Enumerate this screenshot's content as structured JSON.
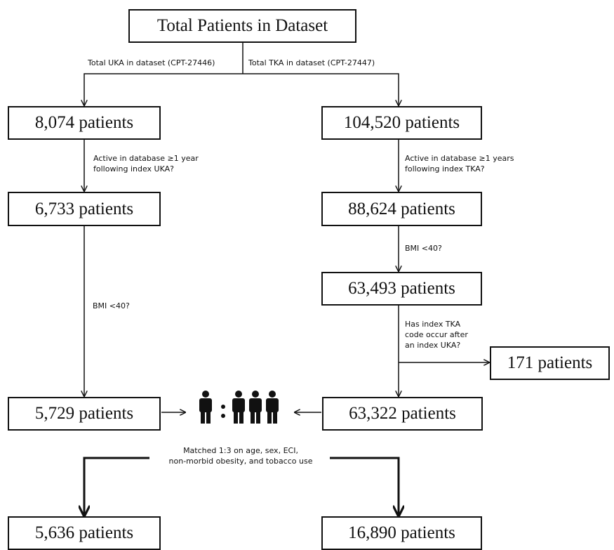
{
  "diagram": {
    "boxes": {
      "total": "Total Patients in Dataset",
      "uka_total": "8,074 patients",
      "tka_total": "104,520 patients",
      "uka_active": "6,733 patients",
      "tka_active": "88,624 patients",
      "tka_bmi": "63,493 patients",
      "tka_excluded": "171 patients",
      "uka_pre_match": "5,729 patients",
      "tka_pre_match": "63,322 patients",
      "uka_matched": "5,636 patients",
      "tka_matched": "16,890 patients"
    },
    "labels": {
      "uka_split": "Total UKA in dataset (CPT-27446)",
      "tka_split": "Total TKA in dataset (CPT-27447)",
      "uka_active_q": [
        "Active in database ≥1 year",
        "following index UKA?"
      ],
      "tka_active_q": [
        "Active in database ≥1 years",
        "following index TKA?"
      ],
      "tka_bmi_q": "BMI <40?",
      "uka_bmi_q": "BMI <40?",
      "tka_after_uka_q": [
        "Has index TKA",
        "code occur after",
        "an index UKA?"
      ],
      "match_rule": [
        "Matched 1:3 on age, sex, ECI,",
        "non-morbid obesity, and tobacco use"
      ],
      "ratio": ":"
    },
    "icons": [
      "person-icon",
      "person-icon",
      "person-icon",
      "person-icon"
    ]
  }
}
